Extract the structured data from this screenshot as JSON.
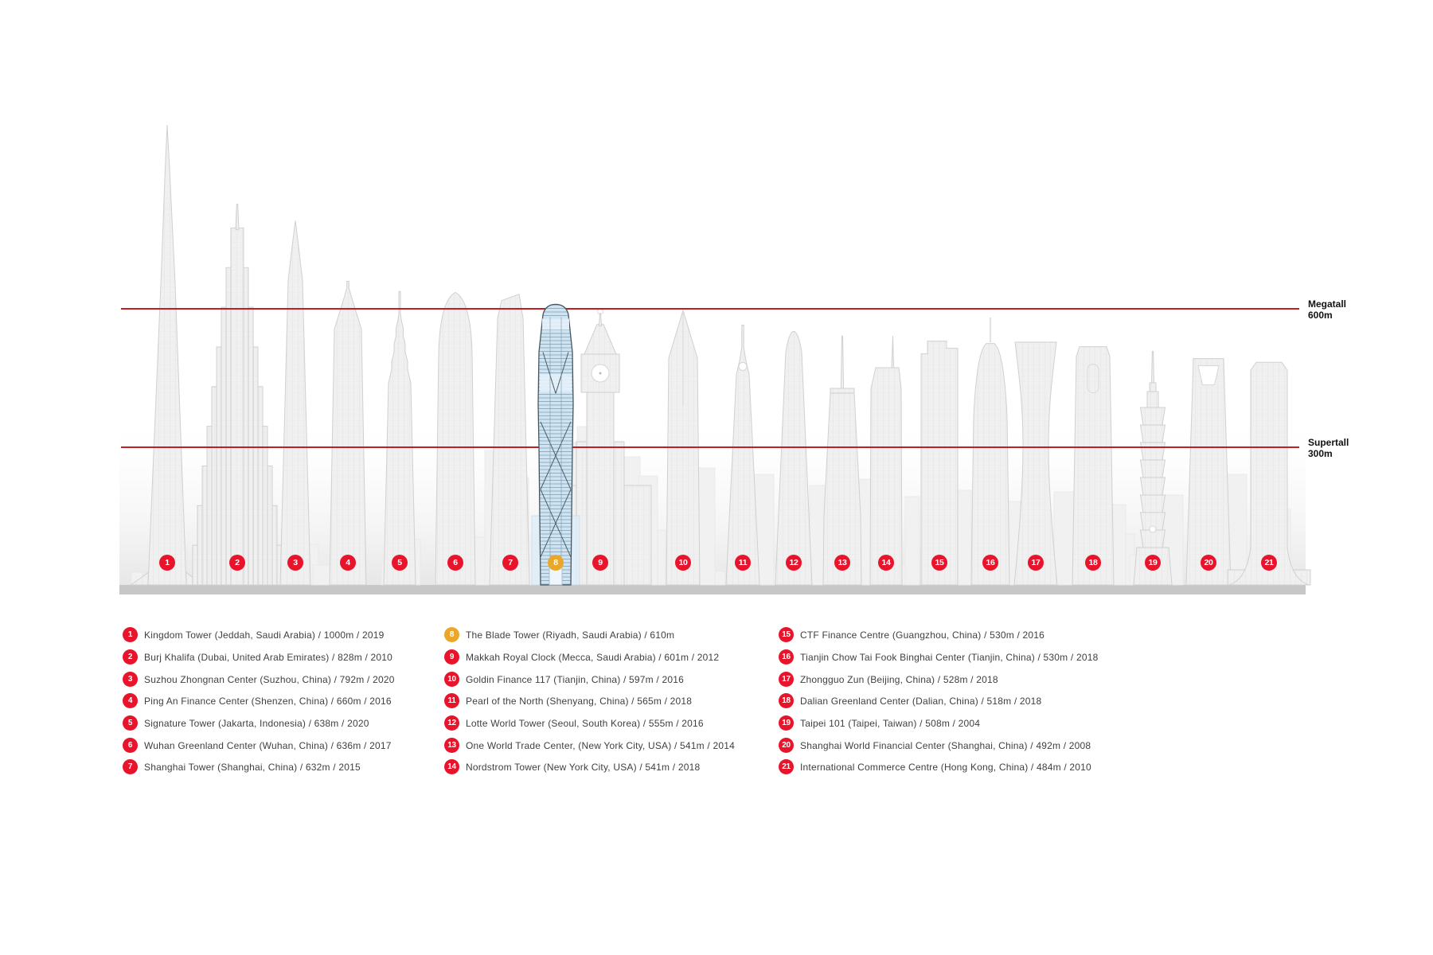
{
  "reference_lines": {
    "megatall": {
      "title": "Megatall",
      "value": "600m",
      "meters": 600
    },
    "supertall": {
      "title": "Supertall",
      "value": "300m",
      "meters": 300
    }
  },
  "colors": {
    "badge": "#e8142b",
    "badge_highlight": "#eaa82b",
    "line": "#c21e24",
    "legend_text": "#3f3f3f",
    "highlight_fill": "#cfe4f2"
  },
  "buildings": [
    {
      "num": 1,
      "name": "Kingdom Tower",
      "location": "Jeddah, Saudi Arabia",
      "height_m": 1000,
      "height_label": "1000m",
      "year": "2019",
      "highlight": false,
      "legend_text": "Kingdom Tower (Jeddah, Saudi Arabia) / 1000m / 2019"
    },
    {
      "num": 2,
      "name": "Burj Khalifa",
      "location": "Dubai, United Arab Emirates",
      "height_m": 828,
      "height_label": "828m",
      "year": "2010",
      "highlight": false,
      "legend_text": "Burj Khalifa (Dubai, United Arab Emirates) / 828m / 2010"
    },
    {
      "num": 3,
      "name": "Suzhou Zhongnan Center",
      "location": "Suzhou, China",
      "height_m": 792,
      "height_label": "792m",
      "year": "2020",
      "highlight": false,
      "legend_text": "Suzhou Zhongnan Center (Suzhou, China) / 792m / 2020"
    },
    {
      "num": 4,
      "name": "Ping An Finance Center",
      "location": "Shenzen, China",
      "height_m": 660,
      "height_label": "660m",
      "year": "2016",
      "highlight": false,
      "legend_text": "Ping An Finance Center (Shenzen, China) / 660m  / 2016"
    },
    {
      "num": 5,
      "name": "Signature Tower",
      "location": "Jakarta, Indonesia",
      "height_m": 638,
      "height_label": "638m",
      "year": "2020",
      "highlight": false,
      "legend_text": "Signature Tower (Jakarta, Indonesia) / 638m / 2020"
    },
    {
      "num": 6,
      "name": "Wuhan Greenland Center",
      "location": "Wuhan, China",
      "height_m": 636,
      "height_label": "636m",
      "year": "2017",
      "highlight": false,
      "legend_text": "Wuhan Greenland Center (Wuhan, China) / 636m / 2017"
    },
    {
      "num": 7,
      "name": "Shanghai Tower",
      "location": "Shanghai, China",
      "height_m": 632,
      "height_label": "632m",
      "year": "2015",
      "highlight": false,
      "legend_text": "Shanghai Tower (Shanghai, China) / 632m  / 2015"
    },
    {
      "num": 8,
      "name": "The Blade Tower",
      "location": "Riyadh, Saudi Arabia",
      "height_m": 610,
      "height_label": "610m",
      "year": null,
      "highlight": true,
      "legend_text": "The Blade Tower (Riyadh, Saudi Arabia) / 610m"
    },
    {
      "num": 9,
      "name": "Makkah Royal Clock",
      "location": "Mecca, Saudi Arabia",
      "height_m": 601,
      "height_label": "601m",
      "year": "2012",
      "highlight": false,
      "legend_text": "Makkah Royal Clock (Mecca, Saudi Arabia) / 601m / 2012"
    },
    {
      "num": 10,
      "name": "Goldin Finance 117",
      "location": "Tianjin, China",
      "height_m": 597,
      "height_label": "597m",
      "year": "2016",
      "highlight": false,
      "legend_text": "Goldin Finance 117 (Tianjin, China) / 597m / 2016"
    },
    {
      "num": 11,
      "name": "Pearl of the North",
      "location": "Shenyang, China",
      "height_m": 565,
      "height_label": "565m",
      "year": "2018",
      "highlight": false,
      "legend_text": "Pearl of the North (Shenyang, China) / 565m / 2018"
    },
    {
      "num": 12,
      "name": "Lotte World Tower",
      "location": "Seoul, South Korea",
      "height_m": 555,
      "height_label": "555m",
      "year": "2016",
      "highlight": false,
      "legend_text": "Lotte World Tower (Seoul, South Korea) / 555m / 2016"
    },
    {
      "num": 13,
      "name": "One World Trade Center",
      "location": "New York City, USA",
      "height_m": 541,
      "height_label": "541m",
      "year": "2014",
      "highlight": false,
      "legend_text": "One World Trade Center, (New York City, USA) / 541m / 2014"
    },
    {
      "num": 14,
      "name": "Nordstrom Tower",
      "location": "New York City, USA",
      "height_m": 541,
      "height_label": "541m",
      "year": "2018",
      "highlight": false,
      "legend_text": "Nordstrom Tower (New York City, USA) / 541m / 2018"
    },
    {
      "num": 15,
      "name": "CTF Finance Centre",
      "location": "Guangzhou, China",
      "height_m": 530,
      "height_label": "530m",
      "year": "2016",
      "highlight": false,
      "legend_text": "CTF Finance Centre (Guangzhou, China) / 530m / 2016"
    },
    {
      "num": 16,
      "name": "Tianjin Chow Tai Fook Binghai Center",
      "location": "Tianjin, China",
      "height_m": 530,
      "height_label": "530m",
      "year": "2018",
      "highlight": false,
      "legend_text": "Tianjin Chow Tai Fook Binghai Center (Tianjin, China) / 530m / 2018"
    },
    {
      "num": 17,
      "name": "Zhongguo Zun",
      "location": "Beijing, China",
      "height_m": 528,
      "height_label": "528m",
      "year": "2018",
      "highlight": false,
      "legend_text": "Zhongguo Zun (Beijing, China) / 528m / 2018"
    },
    {
      "num": 18,
      "name": "Dalian Greenland Center",
      "location": "Dalian, China",
      "height_m": 518,
      "height_label": "518m",
      "year": "2018",
      "highlight": false,
      "legend_text": "Dalian Greenland Center (Dalian, China) / 518m / 2018"
    },
    {
      "num": 19,
      "name": "Taipei 101",
      "location": "Taipei, Taiwan",
      "height_m": 508,
      "height_label": "508m",
      "year": "2004",
      "highlight": false,
      "legend_text": "Taipei 101 (Taipei, Taiwan) / 508m / 2004"
    },
    {
      "num": 20,
      "name": "Shanghai World Financial Center",
      "location": "Shanghai, China",
      "height_m": 492,
      "height_label": "492m",
      "year": "2008",
      "highlight": false,
      "legend_text": "Shanghai World Financial Center (Shanghai, China) / 492m / 2008"
    },
    {
      "num": 21,
      "name": "International Commerce Centre",
      "location": "Hong Kong, China",
      "height_m": 484,
      "height_label": "484m",
      "year": "2010",
      "highlight": false,
      "legend_text": "International Commerce Centre (Hong Kong, China) / 484m / 2010"
    }
  ],
  "chart_data": {
    "type": "bar",
    "title": "",
    "unit": "m",
    "categories": [
      "Kingdom Tower",
      "Burj Khalifa",
      "Suzhou Zhongnan Center",
      "Ping An Finance Center",
      "Signature Tower",
      "Wuhan Greenland Center",
      "Shanghai Tower",
      "The Blade Tower",
      "Makkah Royal Clock",
      "Goldin Finance 117",
      "Pearl of the North",
      "Lotte World Tower",
      "One World Trade Center",
      "Nordstrom Tower",
      "CTF Finance Centre",
      "Tianjin Chow Tai Fook Binghai Center",
      "Zhongguo Zun",
      "Dalian Greenland Center",
      "Taipei 101",
      "Shanghai World Financial Center",
      "International Commerce Centre"
    ],
    "values": [
      1000,
      828,
      792,
      660,
      638,
      636,
      632,
      610,
      601,
      597,
      565,
      555,
      541,
      541,
      530,
      530,
      528,
      518,
      508,
      492,
      484
    ],
    "years": [
      "2019",
      "2010",
      "2020",
      "2016",
      "2020",
      "2017",
      "2015",
      null,
      "2012",
      "2016",
      "2018",
      "2016",
      "2014",
      "2018",
      "2016",
      "2018",
      "2018",
      "2018",
      "2004",
      "2008",
      "2010"
    ],
    "reference_lines": [
      {
        "label": "Megatall",
        "value": 600
      },
      {
        "label": "Supertall",
        "value": 300
      }
    ],
    "highlight_index": 7,
    "ylim": [
      0,
      1040
    ],
    "grid": false,
    "legend_position": "bottom"
  }
}
